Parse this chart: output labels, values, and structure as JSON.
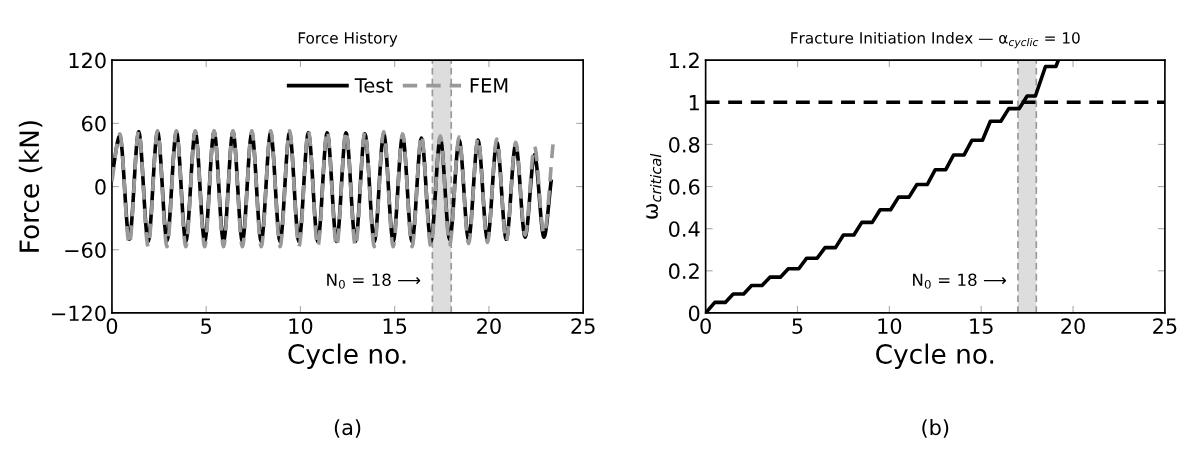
{
  "chart_data": [
    {
      "type": "line",
      "title": "Force History",
      "xlabel": "Cycle no.",
      "ylabel": "Force (kN)",
      "xlim": [
        0,
        25
      ],
      "xticks": [
        0,
        5,
        10,
        15,
        20,
        25
      ],
      "ylim": [
        -120,
        120
      ],
      "yticks": [
        {
          "value": -120,
          "label": "−120"
        },
        {
          "value": -60,
          "label": "−60"
        },
        0,
        60,
        120
      ],
      "grid": false,
      "legend": "top right",
      "series": [
        {
          "name": "Test",
          "color": "#000000",
          "line_style": "solid",
          "x": [
            0,
            0.42,
            0.92,
            1.42,
            1.92,
            2.42,
            2.92,
            3.42,
            3.92,
            4.42,
            4.92,
            5.42,
            5.92,
            6.42,
            6.92,
            7.42,
            7.92,
            8.42,
            8.92,
            9.42,
            9.92,
            10.42,
            10.92,
            11.42,
            11.92,
            12.42,
            12.92,
            13.42,
            13.92,
            14.42,
            14.92,
            15.42,
            15.92,
            16.42,
            16.92,
            17.42,
            17.92,
            18.42,
            18.92,
            19.42,
            19.92,
            20.42,
            20.92,
            21.42,
            21.92,
            22.42,
            22.92,
            23.3
          ],
          "values": [
            10,
            48,
            -50,
            52,
            -52,
            52,
            -51,
            52,
            -52,
            52,
            -52,
            52,
            -52,
            52,
            -52,
            51,
            -52,
            51,
            -52,
            51,
            -52,
            51,
            -52,
            51,
            -52,
            51,
            -52,
            50,
            -52,
            50,
            -52,
            48,
            -52,
            46,
            -52,
            46,
            -50,
            44,
            -50,
            44,
            -50,
            42,
            -50,
            40,
            -48,
            30,
            -48,
            5
          ]
        },
        {
          "name": "FEM",
          "color": "#999999",
          "line_style": "dashed",
          "x": [
            0,
            0.42,
            0.92,
            1.42,
            1.92,
            2.42,
            2.92,
            3.42,
            3.92,
            4.42,
            4.92,
            5.42,
            5.92,
            6.42,
            6.92,
            7.42,
            7.92,
            8.42,
            8.92,
            9.42,
            9.92,
            10.42,
            10.92,
            11.42,
            11.92,
            12.42,
            12.92,
            13.42,
            13.92,
            14.42,
            14.92,
            15.42,
            15.92,
            16.42,
            16.92,
            17.42,
            17.92,
            18.42,
            18.92,
            19.42,
            19.92,
            20.42,
            20.92,
            21.42,
            21.92,
            22.42,
            22.92,
            23.4
          ],
          "values": [
            5,
            50,
            -55,
            53,
            -57,
            53,
            -57,
            53,
            -57,
            53,
            -57,
            53,
            -57,
            53,
            -57,
            53,
            -57,
            53,
            -57,
            53,
            -57,
            53,
            -57,
            53,
            -57,
            53,
            -57,
            52,
            -57,
            52,
            -57,
            50,
            -57,
            49,
            -57,
            48,
            -55,
            47,
            -54,
            46,
            -53,
            45,
            -52,
            42,
            -46,
            38,
            -45,
            40
          ]
        }
      ],
      "bands": [
        {
          "axis": "x",
          "from": 17,
          "to": 18,
          "color": "#dddddd"
        }
      ],
      "ref_lines": [
        {
          "axis": "x",
          "value": 17,
          "color": "#999999",
          "line_style": "dashed"
        },
        {
          "axis": "x",
          "value": 18,
          "color": "#999999",
          "line_style": "dashed"
        }
      ],
      "annotations": [
        {
          "text": "N$_{0}$ = 18 ⟶",
          "x": 17,
          "y": -90
        },
        "(a)"
      ]
    },
    {
      "type": "line",
      "title": "Fracture Initiation Index — α$_{cyclic}$ = 10",
      "xlabel": "Cycle no.",
      "ylabel": "ω$_{critical}$",
      "xlim": [
        0,
        25
      ],
      "xticks": [
        0,
        5,
        10,
        15,
        20,
        25
      ],
      "ylim": [
        0,
        1.2
      ],
      "yticks": [
        0,
        0.2,
        0.4,
        0.6,
        0.8,
        1,
        1.2
      ],
      "grid": false,
      "series": [
        {
          "color": "#000000",
          "line_style": "solid",
          "x": [
            0,
            0.5,
            1.07,
            1.5,
            2.07,
            2.5,
            3.07,
            3.5,
            4.07,
            4.5,
            5.07,
            5.5,
            6.07,
            6.5,
            7.07,
            7.5,
            8.07,
            8.5,
            9.07,
            9.5,
            10.07,
            10.5,
            11.07,
            11.5,
            12.07,
            12.5,
            13.07,
            13.5,
            14.07,
            14.5,
            15.07,
            15.5,
            16.07,
            16.5,
            17.07,
            17.5,
            17.95,
            18.5,
            19.07,
            19.2
          ],
          "values": [
            0,
            0.05,
            0.05,
            0.09,
            0.09,
            0.13,
            0.13,
            0.17,
            0.17,
            0.21,
            0.21,
            0.26,
            0.26,
            0.31,
            0.31,
            0.37,
            0.37,
            0.43,
            0.43,
            0.49,
            0.49,
            0.55,
            0.55,
            0.61,
            0.61,
            0.68,
            0.68,
            0.75,
            0.75,
            0.82,
            0.82,
            0.91,
            0.91,
            0.97,
            0.97,
            1.03,
            1.03,
            1.17,
            1.17,
            1.2
          ]
        }
      ],
      "ref_lines": [
        {
          "axis": "y",
          "value": 1,
          "color": "#000000",
          "line_style": "dashed"
        },
        {
          "axis": "x",
          "value": 17,
          "color": "#999999",
          "line_style": "dashed"
        },
        {
          "axis": "x",
          "value": 18,
          "color": "#999999",
          "line_style": "dashed"
        }
      ],
      "bands": [
        {
          "axis": "x",
          "from": 17,
          "to": 18,
          "color": "#dddddd"
        }
      ],
      "annotations": [
        {
          "text": "N$_{0}$ = 18 ⟶",
          "x": 17,
          "y": 0.15
        },
        "(b)"
      ]
    }
  ]
}
